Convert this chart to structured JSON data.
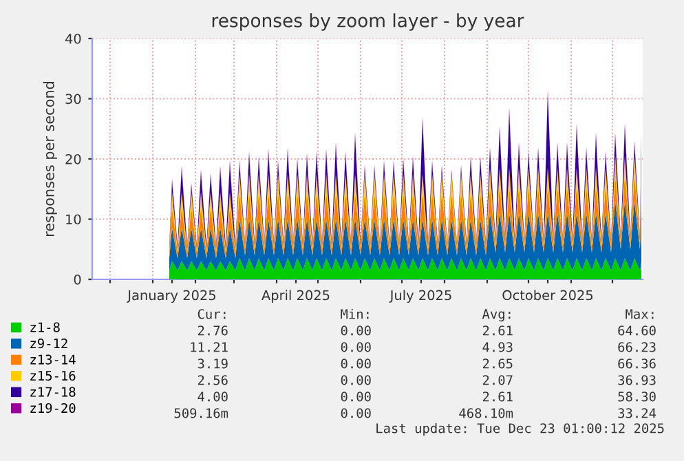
{
  "chart_data": {
    "type": "area",
    "stacked": true,
    "title": "responses by zoom layer - by year",
    "ylabel": "responses per second",
    "x": [
      "2025-01-13",
      "2025-01-15",
      "2025-01-19",
      "2025-01-22",
      "2025-01-26",
      "2025-01-29",
      "2025-02-02",
      "2025-02-05",
      "2025-02-09",
      "2025-02-12",
      "2025-02-16",
      "2025-02-19",
      "2025-02-23",
      "2025-02-26",
      "2025-03-02",
      "2025-03-05",
      "2025-03-09",
      "2025-03-12",
      "2025-03-16",
      "2025-03-19",
      "2025-03-23",
      "2025-03-26",
      "2025-03-30",
      "2025-04-02",
      "2025-04-06",
      "2025-04-09",
      "2025-04-13",
      "2025-04-16",
      "2025-04-20",
      "2025-04-23",
      "2025-04-27",
      "2025-04-30",
      "2025-05-04",
      "2025-05-07",
      "2025-05-11",
      "2025-05-14",
      "2025-05-18",
      "2025-05-21",
      "2025-05-25",
      "2025-05-28",
      "2025-06-01",
      "2025-06-04",
      "2025-06-08",
      "2025-06-11",
      "2025-06-15",
      "2025-06-18",
      "2025-06-22",
      "2025-06-25",
      "2025-06-29",
      "2025-07-02",
      "2025-07-06",
      "2025-07-09",
      "2025-07-13",
      "2025-07-16",
      "2025-07-20",
      "2025-07-23",
      "2025-07-27",
      "2025-07-30",
      "2025-08-03",
      "2025-08-06",
      "2025-08-10",
      "2025-08-13",
      "2025-08-17",
      "2025-08-20",
      "2025-08-24",
      "2025-08-27",
      "2025-08-31",
      "2025-09-03",
      "2025-09-07",
      "2025-09-10",
      "2025-09-14",
      "2025-09-17",
      "2025-09-21",
      "2025-09-24",
      "2025-09-28",
      "2025-10-01",
      "2025-10-05",
      "2025-10-08",
      "2025-10-12",
      "2025-10-15",
      "2025-10-19",
      "2025-10-22",
      "2025-10-26",
      "2025-10-29",
      "2025-11-02",
      "2025-11-05",
      "2025-11-09",
      "2025-11-12",
      "2025-11-16",
      "2025-11-19",
      "2025-11-23",
      "2025-11-26",
      "2025-11-30",
      "2025-12-03",
      "2025-12-07",
      "2025-12-10",
      "2025-12-14",
      "2025-12-17",
      "2025-12-21",
      "2025-12-22"
    ],
    "series": [
      {
        "name": "z1-8",
        "color": "#00cc00",
        "values": [
          1.5,
          3.0,
          1.5,
          3.0,
          1.5,
          3.0,
          1.5,
          3.0,
          1.5,
          3.0,
          1.5,
          3.0,
          1.5,
          3.0,
          1.5,
          3.5,
          1.5,
          3.5,
          1.5,
          3.5,
          1.5,
          3.5,
          1.5,
          3.5,
          1.5,
          3.5,
          1.5,
          3.5,
          1.5,
          3.5,
          1.5,
          3.5,
          1.5,
          3.5,
          1.5,
          3.5,
          1.5,
          3.5,
          1.5,
          3.5,
          1.5,
          3.5,
          1.5,
          3.5,
          1.5,
          3.5,
          1.5,
          3.5,
          1.5,
          3.5,
          1.5,
          3.5,
          1.5,
          3.5,
          1.5,
          3.5,
          1.5,
          3.5,
          1.5,
          3.5,
          1.5,
          3.5,
          1.5,
          3.5,
          1.5,
          3.5,
          1.5,
          3.5,
          1.5,
          3.5,
          1.5,
          3.5,
          1.5,
          3.5,
          1.5,
          3.5,
          1.5,
          3.5,
          1.5,
          3.5,
          1.5,
          3.5,
          1.5,
          3.5,
          1.5,
          3.5,
          1.5,
          3.5,
          1.5,
          3.5,
          1.5,
          3.5,
          1.5,
          3.5,
          1.5,
          3.5,
          1.5,
          3.5,
          1.5,
          2.76
        ]
      },
      {
        "name": "z9-12",
        "color": "#0066b3",
        "values": [
          2.0,
          5.5,
          2.0,
          5.5,
          2.0,
          5.5,
          2.0,
          5.5,
          2.0,
          5.5,
          2.0,
          5.5,
          2.0,
          5.5,
          2.0,
          6.5,
          2.5,
          6.5,
          2.5,
          6.5,
          2.5,
          6.5,
          2.5,
          6.5,
          2.5,
          6.5,
          2.5,
          6.5,
          2.5,
          6.5,
          2.5,
          6.5,
          2.5,
          6.5,
          2.5,
          6.5,
          2.5,
          6.5,
          2.5,
          6.5,
          2.5,
          6.5,
          2.5,
          6.5,
          2.5,
          6.5,
          2.5,
          6.5,
          2.5,
          6.5,
          2.5,
          6.5,
          2.5,
          6.5,
          2.5,
          6.5,
          2.5,
          6.5,
          2.5,
          6.5,
          2.5,
          6.5,
          2.5,
          6.5,
          2.5,
          6.5,
          2.5,
          7.5,
          3.0,
          7.5,
          3.0,
          7.5,
          3.0,
          7.5,
          3.0,
          7.5,
          3.0,
          7.5,
          3.0,
          7.5,
          3.0,
          7.5,
          3.0,
          7.5,
          3.0,
          7.5,
          3.0,
          7.5,
          3.0,
          7.5,
          3.0,
          7.5,
          3.0,
          9.5,
          3.5,
          9.5,
          3.5,
          9.5,
          3.5,
          11.21
        ]
      },
      {
        "name": "z13-14",
        "color": "#ff8000",
        "values": [
          1.0,
          3.5,
          1.0,
          3.5,
          1.0,
          3.5,
          1.0,
          3.5,
          1.0,
          3.5,
          1.0,
          3.5,
          1.0,
          3.5,
          1.0,
          4.5,
          1.0,
          4.5,
          1.0,
          4.5,
          1.0,
          4.5,
          1.0,
          4.5,
          1.0,
          4.5,
          1.0,
          4.5,
          1.0,
          4.5,
          1.0,
          4.5,
          1.0,
          4.5,
          1.0,
          4.5,
          1.0,
          4.5,
          1.0,
          4.5,
          1.0,
          4.5,
          1.0,
          4.5,
          1.0,
          4.5,
          1.0,
          4.5,
          1.0,
          4.5,
          1.0,
          4.5,
          1.0,
          4.5,
          1.0,
          4.5,
          1.0,
          4.5,
          1.0,
          4.5,
          1.0,
          4.5,
          1.0,
          4.5,
          1.0,
          4.5,
          1.0,
          4.5,
          1.0,
          4.5,
          1.0,
          4.5,
          1.0,
          4.5,
          1.0,
          4.5,
          1.0,
          4.5,
          1.0,
          4.5,
          1.0,
          4.5,
          1.0,
          4.5,
          1.0,
          4.5,
          1.0,
          4.5,
          1.0,
          4.5,
          1.0,
          4.5,
          1.0,
          4.5,
          1.0,
          4.5,
          1.0,
          4.5,
          1.0,
          3.19
        ]
      },
      {
        "name": "z15-16",
        "color": "#ffcc00",
        "values": [
          0.5,
          2.5,
          0.5,
          2.5,
          0.5,
          2.5,
          0.5,
          2.5,
          0.5,
          2.5,
          0.5,
          2.5,
          0.5,
          2.5,
          0.5,
          3.0,
          0.5,
          3.0,
          0.5,
          3.0,
          0.5,
          3.0,
          0.5,
          3.0,
          0.5,
          3.0,
          0.5,
          3.0,
          0.5,
          3.0,
          0.5,
          3.0,
          0.5,
          3.0,
          0.5,
          3.0,
          0.5,
          3.0,
          0.5,
          3.0,
          0.5,
          3.0,
          0.5,
          3.0,
          0.5,
          3.0,
          0.5,
          3.0,
          0.5,
          3.0,
          0.5,
          3.0,
          0.5,
          3.0,
          0.5,
          3.0,
          0.5,
          3.0,
          0.5,
          3.0,
          0.5,
          3.0,
          0.5,
          3.0,
          0.5,
          3.0,
          0.5,
          3.0,
          0.5,
          3.0,
          0.5,
          3.0,
          0.5,
          3.0,
          0.5,
          3.0,
          0.5,
          3.0,
          0.5,
          3.0,
          0.5,
          3.0,
          0.5,
          3.0,
          0.5,
          3.0,
          0.5,
          3.0,
          0.5,
          3.0,
          0.5,
          3.0,
          0.5,
          3.0,
          0.5,
          3.0,
          0.5,
          3.0,
          0.5,
          2.56
        ]
      },
      {
        "name": "z17-18",
        "color": "#330099",
        "values": [
          0.5,
          1.7,
          0.5,
          3.9,
          0.5,
          1.0,
          0.5,
          3.3,
          0.5,
          2.6,
          0.5,
          3.9,
          0.5,
          4.8,
          0.5,
          1.8,
          0.5,
          3.3,
          0.5,
          2.5,
          0.5,
          3.7,
          0.5,
          1.8,
          0.5,
          3.9,
          0.5,
          2.2,
          0.5,
          3.0,
          0.5,
          3.3,
          0.5,
          3.7,
          0.5,
          4.8,
          0.5,
          3.3,
          0.5,
          6.4,
          0.5,
          1.0,
          0.5,
          1.0,
          0.5,
          1.8,
          0.5,
          1.8,
          0.5,
          2.2,
          0.5,
          2.5,
          0.5,
          9.0,
          0.5,
          1.8,
          0.5,
          1.0,
          0.5,
          0.3,
          0.5,
          1.0,
          0.5,
          2.5,
          0.5,
          2.5,
          0.5,
          3.0,
          0.5,
          6.5,
          0.5,
          9.6,
          0.5,
          3.8,
          0.5,
          2.3,
          0.5,
          3.0,
          0.5,
          12.5,
          0.5,
          3.8,
          0.5,
          3.8,
          0.5,
          6.9,
          0.5,
          3.0,
          0.5,
          5.4,
          0.5,
          2.3,
          0.5,
          3.4,
          0.5,
          4.9,
          0.5,
          2.0,
          0.5,
          4.0
        ]
      },
      {
        "name": "z19-20",
        "color": "#990099",
        "values": [
          0.1,
          0.5,
          0.1,
          0.5,
          0.1,
          0.5,
          0.1,
          0.5,
          0.1,
          0.5,
          0.1,
          0.5,
          0.1,
          0.5,
          0.1,
          0.5,
          0.1,
          0.5,
          0.1,
          0.5,
          0.1,
          0.5,
          0.1,
          0.5,
          0.1,
          0.5,
          0.1,
          0.5,
          0.1,
          0.5,
          0.1,
          0.5,
          0.1,
          0.5,
          0.1,
          0.5,
          0.1,
          0.5,
          0.1,
          0.5,
          0.1,
          0.5,
          0.1,
          0.5,
          0.1,
          0.5,
          0.1,
          0.5,
          0.1,
          0.5,
          0.1,
          0.5,
          0.1,
          0.5,
          0.1,
          0.5,
          0.1,
          0.5,
          0.1,
          0.5,
          0.1,
          0.5,
          0.1,
          0.5,
          0.1,
          0.5,
          0.1,
          0.5,
          0.1,
          0.5,
          0.1,
          0.5,
          0.1,
          0.5,
          0.1,
          0.5,
          0.1,
          0.5,
          0.1,
          0.5,
          0.1,
          0.5,
          0.1,
          0.5,
          0.1,
          0.5,
          0.1,
          0.5,
          0.1,
          0.5,
          0.1,
          0.5,
          0.1,
          0.5,
          0.1,
          0.5,
          0.1,
          0.5,
          0.1,
          0.51
        ]
      }
    ],
    "xlim": [
      "2024-11-18",
      "2025-12-23"
    ],
    "xticks": [
      {
        "value": "2024-12-01",
        "label": null
      },
      {
        "value": "2025-01-01",
        "label": null
      },
      {
        "value": "2025-01-15",
        "label": "January 2025"
      },
      {
        "value": "2025-02-01",
        "label": null
      },
      {
        "value": "2025-03-01",
        "label": null
      },
      {
        "value": "2025-04-01",
        "label": null
      },
      {
        "value": "2025-04-15",
        "label": "April 2025"
      },
      {
        "value": "2025-05-01",
        "label": null
      },
      {
        "value": "2025-06-01",
        "label": null
      },
      {
        "value": "2025-07-01",
        "label": null
      },
      {
        "value": "2025-07-15",
        "label": "July 2025"
      },
      {
        "value": "2025-08-01",
        "label": null
      },
      {
        "value": "2025-09-01",
        "label": null
      },
      {
        "value": "2025-10-01",
        "label": null
      },
      {
        "value": "2025-10-15",
        "label": "October 2025"
      },
      {
        "value": "2025-11-01",
        "label": null
      },
      {
        "value": "2025-12-01",
        "label": null
      }
    ],
    "ylim": [
      0,
      40
    ],
    "yticks": [
      0,
      10,
      20,
      30,
      40
    ],
    "grid": true,
    "legend": "bottom left",
    "annotations": [
      "Cur:",
      "Min:",
      "Avg:",
      "Max:",
      "2.76",
      "0.00",
      "2.61",
      "64.60",
      "11.21",
      "0.00",
      "4.93",
      "66.23",
      "3.19",
      "0.00",
      "2.65",
      "66.36",
      "2.56",
      "0.00",
      "2.07",
      "36.93",
      "4.00",
      "0.00",
      "2.61",
      "58.30",
      "509.16m",
      "0.00",
      "468.10m",
      "33.24",
      "Last update: Tue Dec 23 01:00:12 2025"
    ]
  }
}
